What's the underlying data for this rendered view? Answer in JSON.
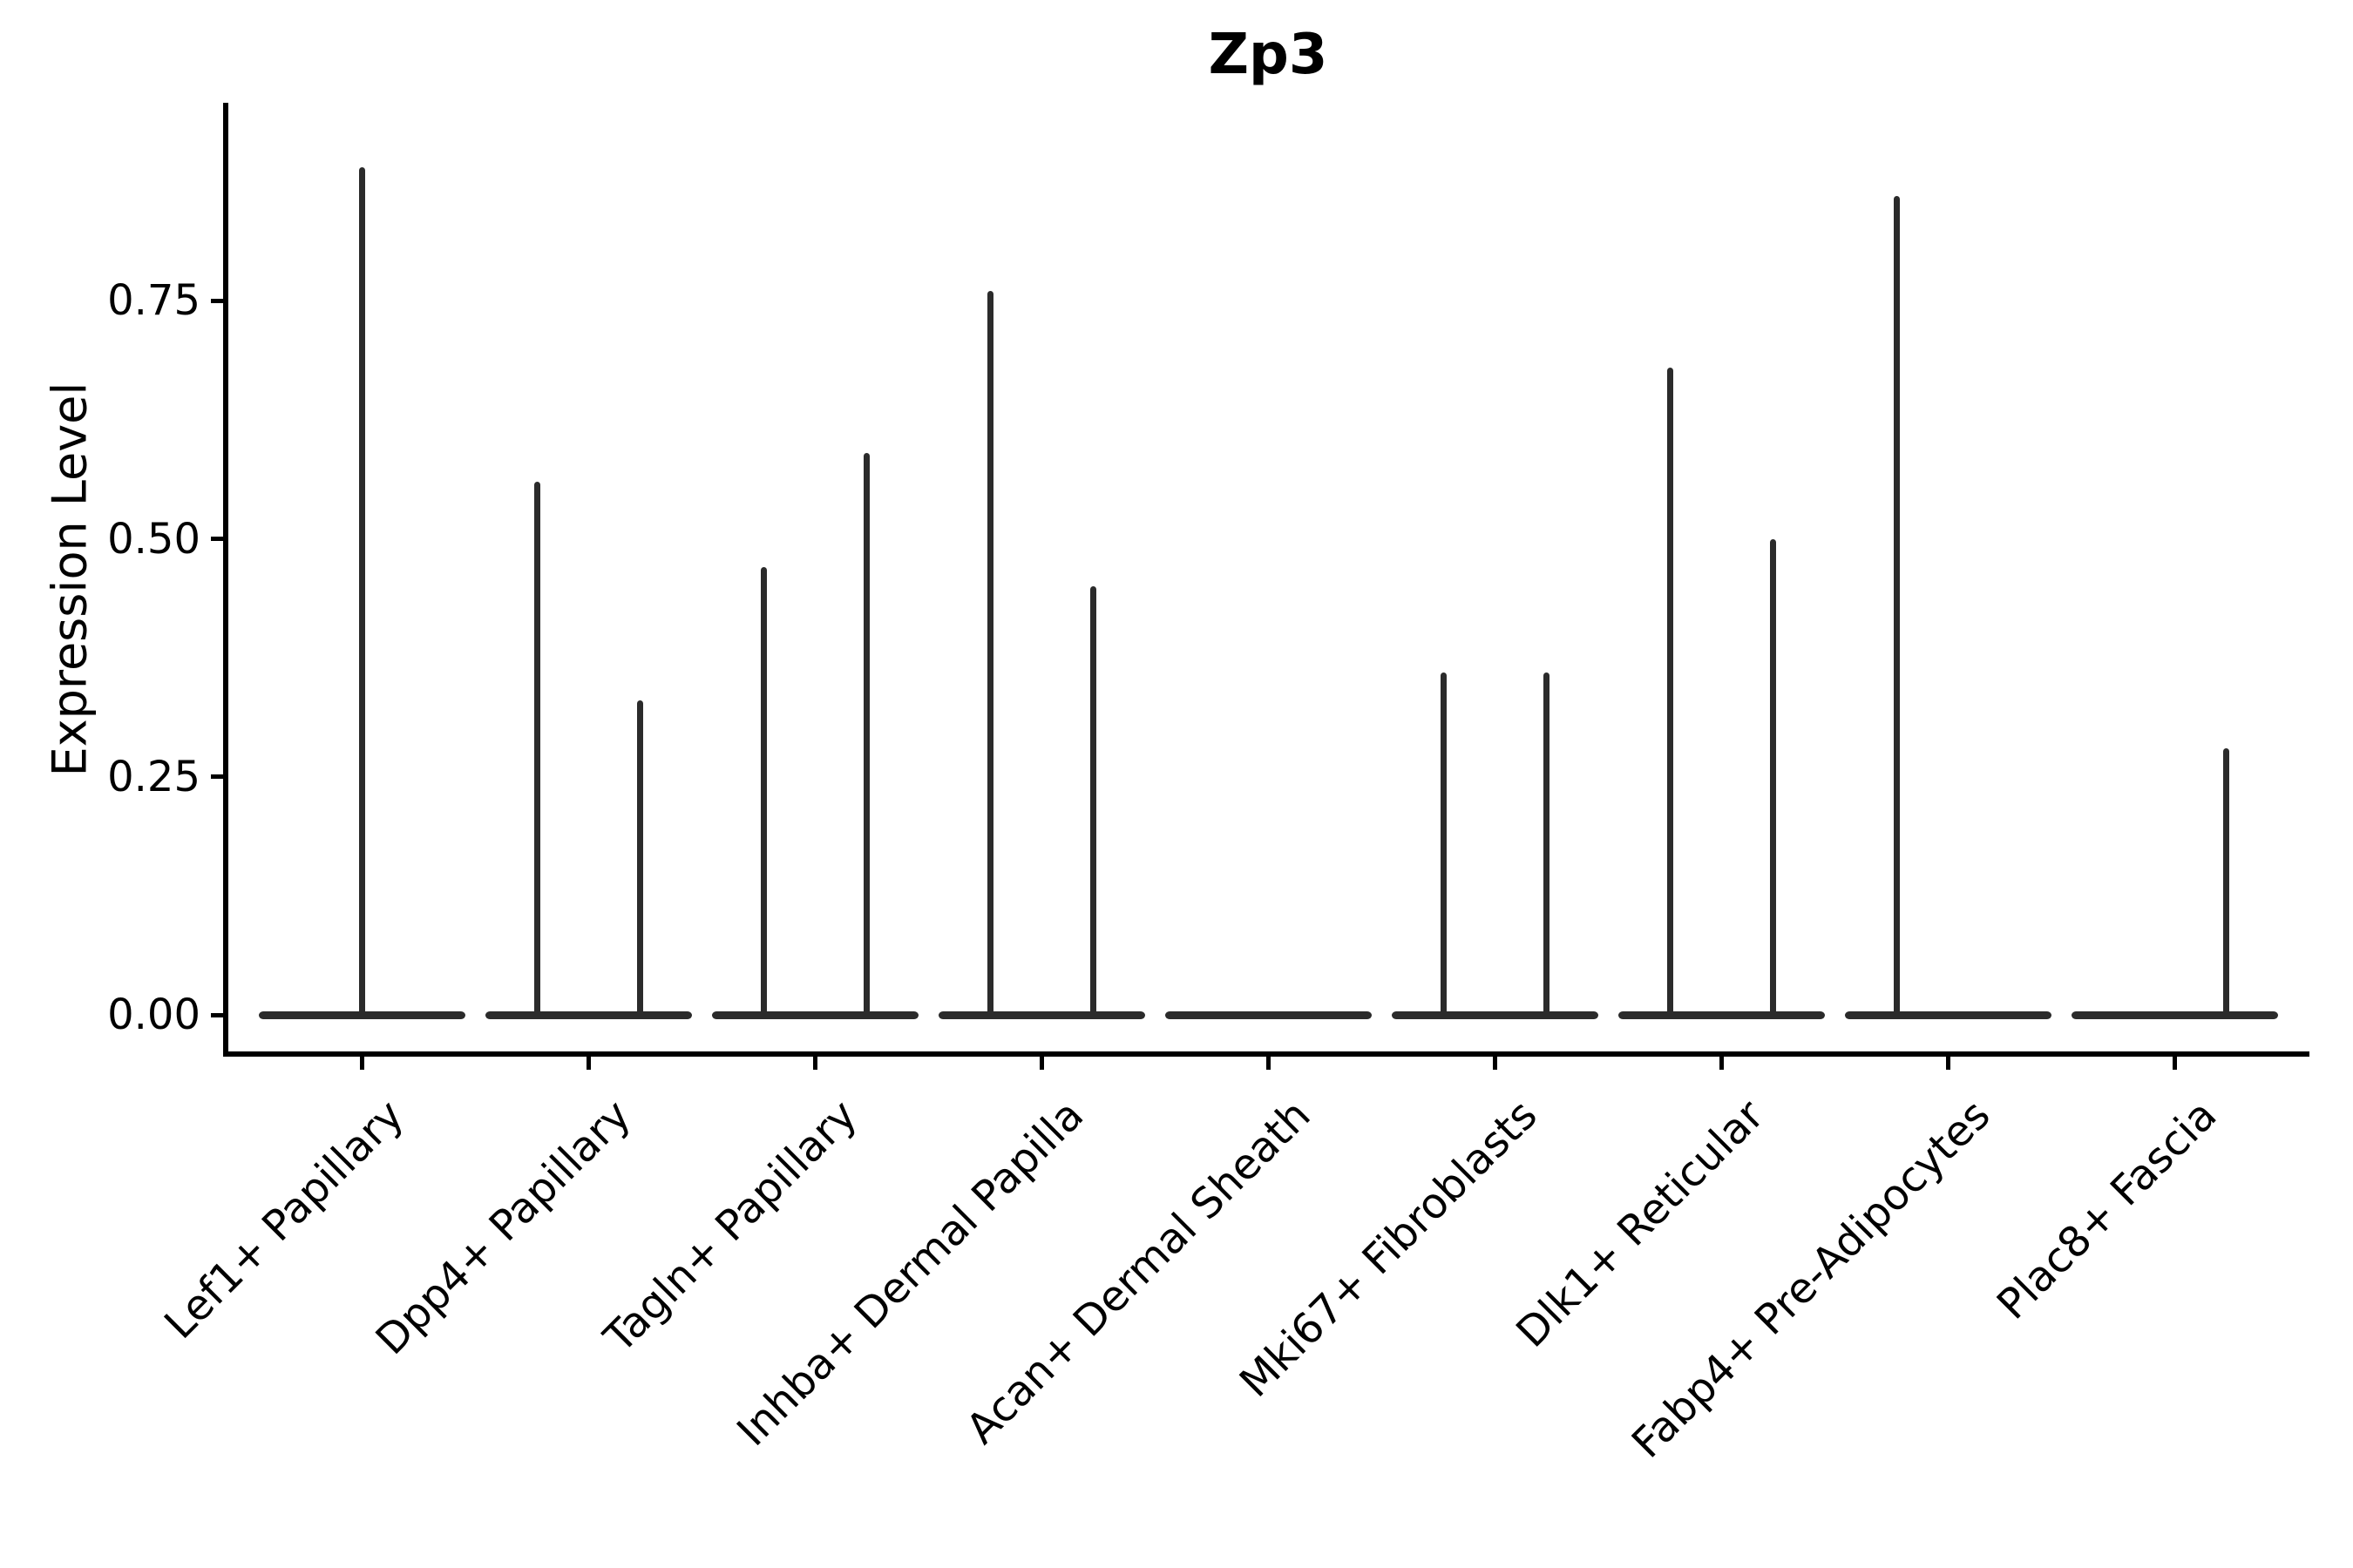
{
  "chart_data": {
    "type": "violin",
    "title": "Zp3",
    "ylabel": "Expression Level",
    "xlabel": "",
    "ytick_labels": [
      "0.00",
      "0.25",
      "0.50",
      "0.75"
    ],
    "ytick_values": [
      0.0,
      0.25,
      0.5,
      0.75
    ],
    "ylim": [
      -0.04,
      0.955
    ],
    "grid": false,
    "legend_position": "none",
    "violin_color": "#2b2b2b",
    "axis_color": "#000000",
    "background_color": "#ffffff",
    "categories": [
      "Lef1+ Papillary",
      "Dpp4+ Papillary",
      "Tagln+ Papillary",
      "Inhba+ Dermal Papilla",
      "Acan+ Dermal Sheath",
      "Mki67+ Fibroblasts",
      "Dlk1+ Reticular",
      "Fabp4+ Pre-Adipocytes",
      "Plac8+ Fascia"
    ],
    "series": [
      {
        "category": "Lef1+ Papillary",
        "baseline_value": 0,
        "spikes": [
          {
            "position": "center",
            "max": 0.89
          }
        ]
      },
      {
        "category": "Dpp4+ Papillary",
        "baseline_value": 0,
        "spikes": [
          {
            "position": "left",
            "max": 0.56
          },
          {
            "position": "right",
            "max": 0.33
          }
        ]
      },
      {
        "category": "Tagln+ Papillary",
        "baseline_value": 0,
        "spikes": [
          {
            "position": "left",
            "max": 0.47
          },
          {
            "position": "right",
            "max": 0.59
          }
        ]
      },
      {
        "category": "Inhba+ Dermal Papilla",
        "baseline_value": 0,
        "spikes": [
          {
            "position": "left",
            "max": 0.76
          },
          {
            "position": "right",
            "max": 0.45
          }
        ]
      },
      {
        "category": "Acan+ Dermal Sheath",
        "baseline_value": 0,
        "spikes": []
      },
      {
        "category": "Mki67+ Fibroblasts",
        "baseline_value": 0,
        "spikes": [
          {
            "position": "left",
            "max": 0.36
          },
          {
            "position": "right",
            "max": 0.36
          }
        ]
      },
      {
        "category": "Dlk1+ Reticular",
        "baseline_value": 0,
        "spikes": [
          {
            "position": "left",
            "max": 0.68
          },
          {
            "position": "right",
            "max": 0.5
          }
        ]
      },
      {
        "category": "Fabp4+ Pre-Adipocytes",
        "baseline_value": 0,
        "spikes": [
          {
            "position": "left",
            "max": 0.86
          }
        ]
      },
      {
        "category": "Plac8+ Fascia",
        "baseline_value": 0,
        "spikes": [
          {
            "position": "right",
            "max": 0.28
          }
        ]
      }
    ]
  }
}
